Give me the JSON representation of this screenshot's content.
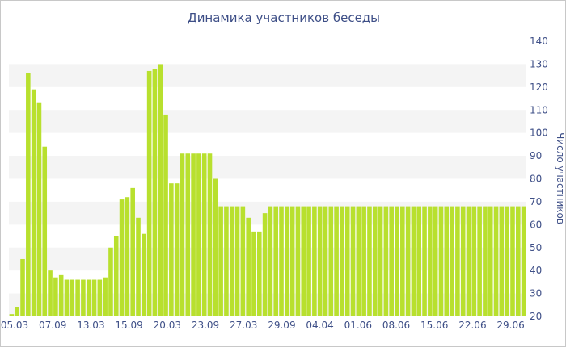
{
  "chart_data": {
    "type": "bar",
    "title": "Динамика участников беседы",
    "xlabel": "",
    "ylabel": "Число участников",
    "ylim": [
      20,
      140
    ],
    "yticks": [
      20,
      30,
      40,
      50,
      60,
      70,
      80,
      90,
      100,
      110,
      120,
      130,
      140
    ],
    "xtick_labels": [
      "05.03",
      "07.09",
      "13.03",
      "15.09",
      "20.03",
      "23.09",
      "27.03",
      "29.09",
      "04.04",
      "01.06",
      "08.06",
      "15.06",
      "22.06",
      "29.06"
    ],
    "grid": "alternating horizontal bands",
    "y_axis_position": "right",
    "bar_color": "#b8e02e",
    "values": [
      21,
      24,
      45,
      126,
      119,
      113,
      94,
      40,
      37,
      38,
      36,
      36,
      36,
      36,
      36,
      36,
      36,
      37,
      50,
      55,
      71,
      72,
      76,
      63,
      56,
      127,
      128,
      130,
      108,
      78,
      78,
      91,
      91,
      91,
      91,
      91,
      91,
      80,
      68,
      68,
      68,
      68,
      68,
      63,
      57,
      57,
      65,
      68,
      68,
      68,
      68,
      68,
      68,
      68,
      68,
      68,
      68,
      68,
      68,
      68,
      68,
      68,
      68,
      68,
      68,
      68,
      68,
      68,
      68,
      68,
      68,
      68,
      68,
      68,
      68,
      68,
      68,
      68,
      68,
      68,
      68,
      68,
      68,
      68,
      68,
      68,
      68,
      68,
      68,
      68,
      68,
      68,
      68,
      68
    ]
  },
  "colors": {
    "title": "#3e4f87",
    "axis_text": "#3e4f87",
    "band": "#f4f4f4",
    "bar": "#b8e02e"
  }
}
